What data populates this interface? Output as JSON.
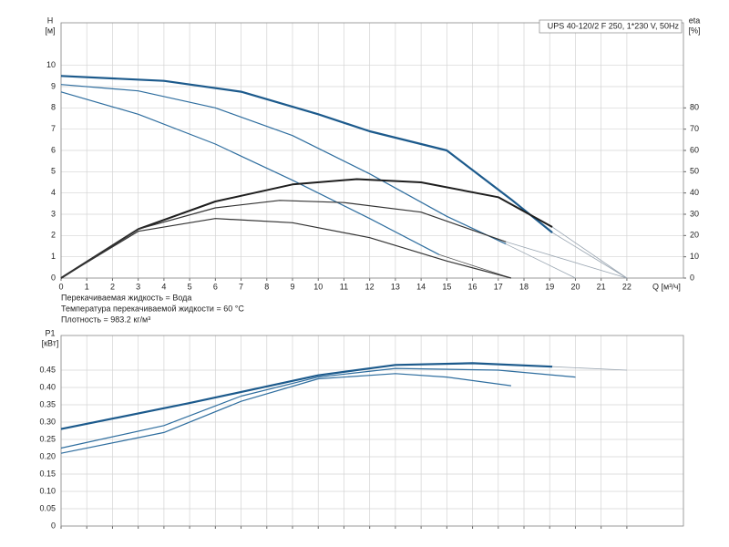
{
  "chart_data": [
    {
      "type": "line",
      "title": "UPS 40-120/2 F 250, 1*230 V, 50Hz",
      "ylabel": "H",
      "yunit": "[м]",
      "y2label": "eta",
      "y2unit": "[%]",
      "xlabel": "Q [м³/ч]",
      "xlim": [
        0,
        24.2
      ],
      "xticks": [
        0,
        1,
        2,
        3,
        4,
        5,
        6,
        7,
        8,
        9,
        10,
        11,
        12,
        13,
        14,
        15,
        16,
        17,
        18,
        19,
        20,
        21,
        22
      ],
      "ylim": [
        0,
        12
      ],
      "yticks": [
        0,
        1,
        2,
        3,
        4,
        5,
        6,
        7,
        8,
        9,
        10
      ],
      "y2lim": [
        0,
        120
      ],
      "y2ticks": [
        0,
        10,
        20,
        30,
        40,
        50,
        60,
        70,
        80
      ],
      "grid": true,
      "annotations": [
        "Перекачиваемая жидкость = Вода",
        "Температура перекачиваемой жидкости = 60 °C",
        "Плотность = 983.2 кг/м³"
      ],
      "series": [
        {
          "color": "#1c5a8c",
          "linewidth": 2.2,
          "x": [
            0,
            4,
            7,
            10,
            12,
            15,
            17.5,
            19.1
          ],
          "values": [
            9.5,
            9.27,
            8.76,
            7.7,
            6.9,
            6.0,
            3.7,
            2.14
          ]
        },
        {
          "color": "#9aa6b2",
          "linewidth": 0.8,
          "x": [
            19.1,
            22
          ],
          "values": [
            2.14,
            0
          ]
        },
        {
          "color": "#2f6e9f",
          "linewidth": 1.2,
          "x": [
            0,
            3,
            6,
            9,
            12,
            15,
            17.3
          ],
          "values": [
            9.1,
            8.8,
            8.0,
            6.7,
            4.9,
            2.9,
            1.6
          ]
        },
        {
          "color": "#9aa6b2",
          "linewidth": 0.8,
          "x": [
            17.3,
            20
          ],
          "values": [
            1.6,
            0
          ]
        },
        {
          "color": "#2f6e9f",
          "linewidth": 1.2,
          "x": [
            0,
            3,
            6,
            9,
            12,
            14.7
          ],
          "values": [
            8.75,
            7.7,
            6.3,
            4.6,
            2.8,
            1.1
          ]
        },
        {
          "color": "#555555",
          "linewidth": 0.8,
          "x": [
            14.7,
            17.5
          ],
          "values": [
            1.1,
            0
          ]
        },
        {
          "color": "#1e1e1e",
          "linewidth": 2.0,
          "axis": "y2",
          "x": [
            0,
            3,
            6,
            9,
            11.5,
            14,
            17,
            19.1
          ],
          "values": [
            0,
            23,
            36,
            44,
            46.5,
            45,
            38,
            24
          ]
        },
        {
          "color": "#9aa6b2",
          "linewidth": 0.8,
          "axis": "y2",
          "x": [
            19.1,
            22
          ],
          "values": [
            24,
            0
          ]
        },
        {
          "color": "#333333",
          "linewidth": 1.2,
          "axis": "y2",
          "x": [
            0,
            3,
            6,
            8.5,
            11,
            14,
            17.3
          ],
          "values": [
            0,
            23,
            33,
            36.5,
            35.5,
            31,
            17
          ]
        },
        {
          "color": "#9aa6b2",
          "linewidth": 0.8,
          "axis": "y2",
          "x": [
            17.3,
            22
          ],
          "values": [
            17,
            0
          ]
        },
        {
          "color": "#333333",
          "linewidth": 1.2,
          "axis": "y2",
          "x": [
            0,
            3,
            6,
            9,
            12,
            15,
            17.5
          ],
          "values": [
            0,
            22,
            28,
            26,
            19,
            8,
            0
          ]
        }
      ]
    },
    {
      "type": "line",
      "ylabel": "P1",
      "yunit": "[кВт]",
      "xlim": [
        0,
        24.2
      ],
      "xticks": [
        0,
        1,
        2,
        3,
        4,
        5,
        6,
        7,
        8,
        9,
        10,
        11,
        12,
        13,
        14,
        15,
        16,
        17,
        18,
        19,
        20,
        21,
        22
      ],
      "ylim": [
        0,
        0.55
      ],
      "yticks": [
        0,
        0.05,
        {
          "value": 0.1,
          "label": "0.10"
        },
        0.15,
        {
          "value": 0.2,
          "label": "0.20"
        },
        0.25,
        {
          "value": 0.3,
          "label": "0.30"
        },
        0.35,
        {
          "value": 0.4,
          "label": "0.40"
        },
        0.45
      ],
      "grid": true,
      "series": [
        {
          "color": "#1c5a8c",
          "linewidth": 2.2,
          "x": [
            0,
            5,
            10,
            13,
            16,
            19.1
          ],
          "values": [
            0.28,
            0.355,
            0.435,
            0.465,
            0.47,
            0.46
          ]
        },
        {
          "color": "#9aa6b2",
          "linewidth": 0.8,
          "x": [
            19.1,
            22
          ],
          "values": [
            0.46,
            0.45
          ]
        },
        {
          "color": "#2f6e9f",
          "linewidth": 1.2,
          "x": [
            0,
            4,
            7,
            10,
            13,
            17,
            20
          ],
          "values": [
            0.225,
            0.29,
            0.375,
            0.43,
            0.455,
            0.45,
            0.43
          ]
        },
        {
          "color": "#2f6e9f",
          "linewidth": 1.2,
          "x": [
            0,
            4,
            7,
            10,
            13,
            15,
            17.5
          ],
          "values": [
            0.21,
            0.27,
            0.36,
            0.425,
            0.44,
            0.43,
            0.405
          ]
        }
      ]
    }
  ]
}
